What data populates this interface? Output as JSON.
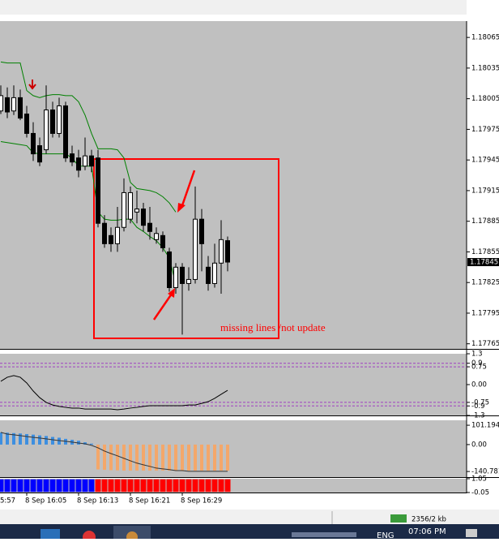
{
  "chart_data": [
    {
      "type": "candlestick",
      "categories": [
        null,
        null,
        null,
        null,
        "8 Sep 16:05",
        null,
        null,
        null,
        null,
        null,
        null,
        null,
        "8 Sep 16:13",
        null,
        null,
        null,
        null,
        null,
        null,
        null,
        "8 Sep 16:21",
        null,
        null,
        null,
        null,
        null,
        null,
        null,
        "8 Sep 16:29",
        null,
        null,
        null,
        null,
        null,
        null,
        null
      ],
      "x_cut_label": "5:57",
      "open": [
        1.17993,
        1.18006,
        1.17993,
        1.18006,
        1.1799,
        1.17971,
        1.17959,
        1.17955,
        1.17994,
        1.17971,
        1.17998,
        1.17951,
        1.17947,
        1.17939,
        1.17949,
        1.17947,
        1.17883,
        1.17871,
        1.17863,
        1.17879,
        1.17887,
        1.17894,
        1.17897,
        1.17883,
        1.17867,
        1.17871,
        1.17855,
        1.1782,
        1.1784,
        1.17824,
        1.17828,
        1.17887,
        1.1784,
        1.17824,
        1.17844,
        1.17866
      ],
      "high": [
        1.18018,
        1.18016,
        1.18018,
        1.18014,
        1.17998,
        1.17982,
        1.17967,
        1.18018,
        1.18002,
        1.18006,
        1.18002,
        1.17959,
        1.17955,
        1.17967,
        1.17955,
        1.17955,
        1.17891,
        1.17879,
        1.17899,
        1.17927,
        1.17919,
        1.17915,
        1.17903,
        1.17899,
        1.17879,
        1.17875,
        1.17859,
        1.17844,
        1.17844,
        1.1784,
        1.17919,
        1.17897,
        1.17851,
        1.17863,
        1.17886,
        1.1787
      ],
      "low": [
        1.1799,
        1.17986,
        1.17989,
        1.17984,
        1.17967,
        1.17944,
        1.17939,
        1.17951,
        1.17967,
        1.17967,
        1.17943,
        1.17939,
        1.17928,
        1.17935,
        1.17933,
        1.17879,
        1.17859,
        1.17855,
        1.17855,
        1.17875,
        1.17883,
        1.17883,
        1.17875,
        1.17867,
        1.17863,
        1.17855,
        1.17816,
        1.17814,
        1.17774,
        1.17817,
        1.17824,
        1.17836,
        1.17817,
        1.1782,
        1.17814,
        1.17836
      ],
      "close": [
        1.18008,
        1.17992,
        1.18006,
        1.17986,
        1.17971,
        1.17951,
        1.17943,
        1.17994,
        1.17971,
        1.17998,
        1.17947,
        1.17943,
        1.17935,
        1.17949,
        1.17939,
        1.17883,
        1.17863,
        1.17863,
        1.17879,
        1.17913,
        1.17913,
        1.17897,
        1.17881,
        1.17875,
        1.17873,
        1.17859,
        1.1782,
        1.1784,
        1.17824,
        1.17828,
        1.17887,
        1.17863,
        1.17824,
        1.17844,
        1.17867,
        1.17845
      ],
      "up_color": "#ffffff",
      "down_color": "#000000",
      "overlays": [
        {
          "color": "#008000",
          "values": [
            1.18041,
            1.1804,
            1.1804,
            1.1804,
            1.18013,
            1.18008,
            1.18006,
            1.18008,
            1.18009,
            1.18009,
            1.18008,
            1.18008,
            1.18002,
            1.17989,
            1.17971,
            1.17956,
            1.17956,
            1.17956,
            1.17955,
            1.17947,
            1.17923,
            1.17917,
            1.17916,
            1.17915,
            1.17913,
            1.17909,
            1.17903,
            1.17894,
            null,
            null,
            null,
            null,
            null,
            null,
            null,
            null
          ]
        },
        {
          "color": "#008000",
          "values": [
            1.17963,
            1.17962,
            1.17961,
            1.1796,
            1.17959,
            1.17952,
            1.17951,
            1.17951,
            1.17951,
            1.17951,
            1.17951,
            1.17947,
            1.17939,
            1.17939,
            1.17939,
            1.17894,
            1.17887,
            1.17886,
            1.17886,
            1.17887,
            1.17887,
            1.17879,
            1.17875,
            1.1787,
            1.17866,
            1.17859,
            1.17849,
            1.17824,
            null,
            null,
            null,
            null,
            null,
            null,
            null,
            null
          ]
        }
      ],
      "ylim": [
        1.1776,
        1.18081
      ],
      "yticks": [
        1.18065,
        1.18035,
        1.18005,
        1.17975,
        1.17945,
        1.17915,
        1.17885,
        1.17855,
        1.17825,
        1.17795,
        1.17765
      ],
      "current_price": 1.17845,
      "annotation": "missing lines /not update"
    },
    {
      "type": "line",
      "color": "#000000",
      "values": [
        0.14,
        0.31,
        0.38,
        0.31,
        0.07,
        -0.27,
        -0.55,
        -0.75,
        -0.86,
        -0.92,
        -0.96,
        -0.99,
        -0.99,
        -1.03,
        -1.03,
        -1.03,
        -1.03,
        -1.03,
        -1.06,
        -1.03,
        -0.99,
        -0.96,
        -0.92,
        -0.89,
        -0.89,
        -0.89,
        -0.89,
        -0.89,
        -0.89,
        -0.86,
        -0.86,
        -0.79,
        -0.72,
        -0.58,
        -0.41,
        -0.24
      ],
      "level_color": "#a040c0",
      "ylim": [
        -1.3,
        1.3
      ],
      "yticks": [
        1.3,
        0.9,
        0.75,
        {
          "value": 0,
          "label": "0.00"
        },
        -0.75,
        -0.9,
        -1.3
      ]
    },
    {
      "type": "histogram",
      "values": [
        63,
        62,
        60,
        58,
        55,
        52,
        48,
        45,
        40,
        36,
        30,
        25,
        20,
        12,
        5,
        -130,
        -132,
        -134,
        -135,
        -136,
        -136,
        -136,
        -136,
        -136,
        -136,
        -136,
        -136,
        -136,
        -136,
        -136,
        -136,
        -136,
        -136,
        -136,
        -136,
        -136
      ],
      "pos_color": "#3d8fe0",
      "neg_color": "#f4a76a",
      "line": {
        "color": "#333333",
        "values": [
          64,
          55,
          51,
          47,
          42,
          38,
          34,
          30,
          25,
          21,
          17,
          13,
          8,
          4,
          -4,
          -17,
          -34,
          -47,
          -59,
          -72,
          -85,
          -97,
          -106,
          -114,
          -123,
          -127,
          -131,
          -136,
          -136,
          -140,
          -140,
          -140,
          -140,
          -140,
          -140,
          -140
        ]
      },
      "ylim": [
        -170,
        127
      ],
      "yticks": [
        101.1942,
        {
          "value": 0,
          "label": "0.00"
        },
        -140.781
      ]
    },
    {
      "type": "blocks",
      "values": [
        1,
        1,
        1,
        1,
        1,
        1,
        1,
        1,
        1,
        1,
        1,
        1,
        1,
        1,
        1,
        1,
        1,
        1,
        1,
        1,
        1,
        1,
        1,
        1,
        1,
        1,
        1,
        1,
        1,
        1,
        1,
        1,
        1,
        1,
        1,
        1
      ],
      "colors": [
        "#0000ff",
        "#0000ff",
        "#0000ff",
        "#0000ff",
        "#0000ff",
        "#0000ff",
        "#0000ff",
        "#0000ff",
        "#0000ff",
        "#0000ff",
        "#0000ff",
        "#0000ff",
        "#0000ff",
        "#0000ff",
        "#0000ff",
        "#ff0000",
        "#ff0000",
        "#ff0000",
        "#ff0000",
        "#ff0000",
        "#ff0000",
        "#ff0000",
        "#ff0000",
        "#ff0000",
        "#ff0000",
        "#ff0000",
        "#ff0000",
        "#ff0000",
        "#ff0000",
        "#ff0000",
        "#ff0000",
        "#ff0000",
        "#ff0000",
        "#ff0000",
        "#ff0000",
        "#ff0000"
      ],
      "ylim": [
        -0.05,
        1.05
      ],
      "yticks": [
        1.05,
        -0.05
      ]
    }
  ],
  "ui": {
    "status": "2356/2 kb",
    "language": "ENG",
    "clock": "07:06 PM"
  }
}
